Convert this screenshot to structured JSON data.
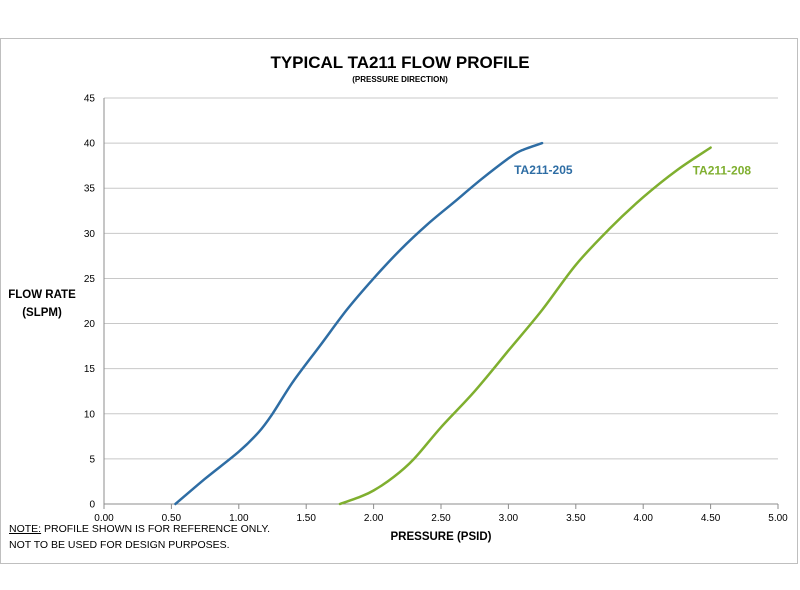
{
  "chart_data": {
    "type": "line",
    "title": "TYPICAL TA211 FLOW PROFILE",
    "subtitle": "(PRESSURE DIRECTION)",
    "xlabel": "PRESSURE (PSID)",
    "ylabel_line1": "FLOW RATE",
    "ylabel_line2": "(SLPM)",
    "xlim": [
      0,
      5
    ],
    "ylim": [
      0,
      45
    ],
    "x_ticks": [
      "0.00",
      "0.50",
      "1.00",
      "1.50",
      "2.00",
      "2.50",
      "3.00",
      "3.50",
      "4.00",
      "4.50",
      "5.00"
    ],
    "y_ticks": [
      "0",
      "5",
      "10",
      "15",
      "20",
      "25",
      "30",
      "35",
      "40",
      "45"
    ],
    "grid": "horizontal",
    "series": [
      {
        "name": "TA211-205",
        "color": "#2E6DA4",
        "points": [
          [
            0.53,
            0
          ],
          [
            0.75,
            2.8
          ],
          [
            1.0,
            5.8
          ],
          [
            1.15,
            8.0
          ],
          [
            1.25,
            10.0
          ],
          [
            1.4,
            13.5
          ],
          [
            1.6,
            17.5
          ],
          [
            1.8,
            21.5
          ],
          [
            2.0,
            25.0
          ],
          [
            2.2,
            28.2
          ],
          [
            2.4,
            31.0
          ],
          [
            2.6,
            33.5
          ],
          [
            2.8,
            36.0
          ],
          [
            3.0,
            38.3
          ],
          [
            3.1,
            39.2
          ],
          [
            3.25,
            40.0
          ]
        ]
      },
      {
        "name": "TA211-208",
        "color": "#7FAF2F",
        "points": [
          [
            1.75,
            0
          ],
          [
            1.9,
            0.8
          ],
          [
            2.0,
            1.5
          ],
          [
            2.15,
            3.0
          ],
          [
            2.3,
            5.0
          ],
          [
            2.5,
            8.5
          ],
          [
            2.75,
            12.5
          ],
          [
            3.0,
            17.0
          ],
          [
            3.25,
            21.5
          ],
          [
            3.5,
            26.5
          ],
          [
            3.75,
            30.5
          ],
          [
            4.0,
            34.0
          ],
          [
            4.25,
            37.0
          ],
          [
            4.5,
            39.5
          ]
        ]
      }
    ]
  },
  "note": {
    "label": "NOTE:",
    "line1_rest": " PROFILE SHOWN IS FOR REFERENCE ONLY.",
    "line2": "NOT TO BE USED FOR DESIGN PURPOSES."
  }
}
